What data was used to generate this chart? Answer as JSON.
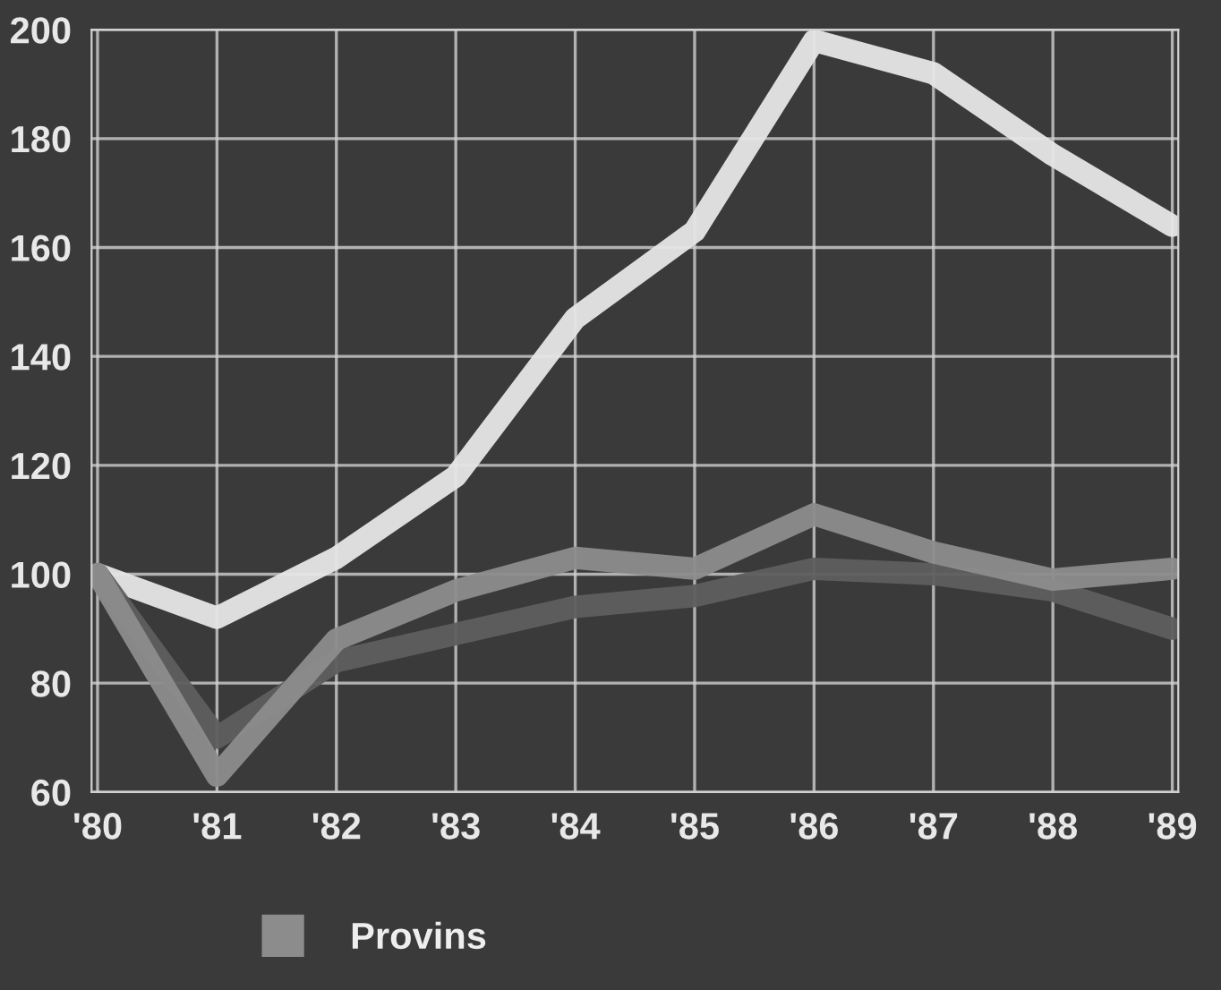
{
  "chart_data": {
    "type": "line",
    "categories": [
      "'80",
      "'81",
      "'82",
      "'83",
      "'84",
      "'85",
      "'86",
      "'87",
      "'88",
      "'89"
    ],
    "series": [
      {
        "color": "#e6e6e6",
        "values": [
          100,
          92,
          103,
          118,
          147,
          163,
          198,
          192,
          177,
          164
        ]
      },
      {
        "color": "#5e5e5e",
        "values": [
          100,
          70,
          84,
          89,
          94,
          96,
          101,
          100,
          97,
          90
        ]
      },
      {
        "name": "Provins",
        "color": "#8c8c8c",
        "values": [
          100,
          63,
          88,
          97,
          103,
          101,
          111,
          104,
          99,
          101
        ]
      }
    ],
    "ylim": [
      60,
      200
    ],
    "yticks": [
      60,
      80,
      100,
      120,
      140,
      160,
      180,
      200
    ],
    "grid": true,
    "legend": "bottom",
    "line_style": "solid",
    "marker": "none"
  }
}
